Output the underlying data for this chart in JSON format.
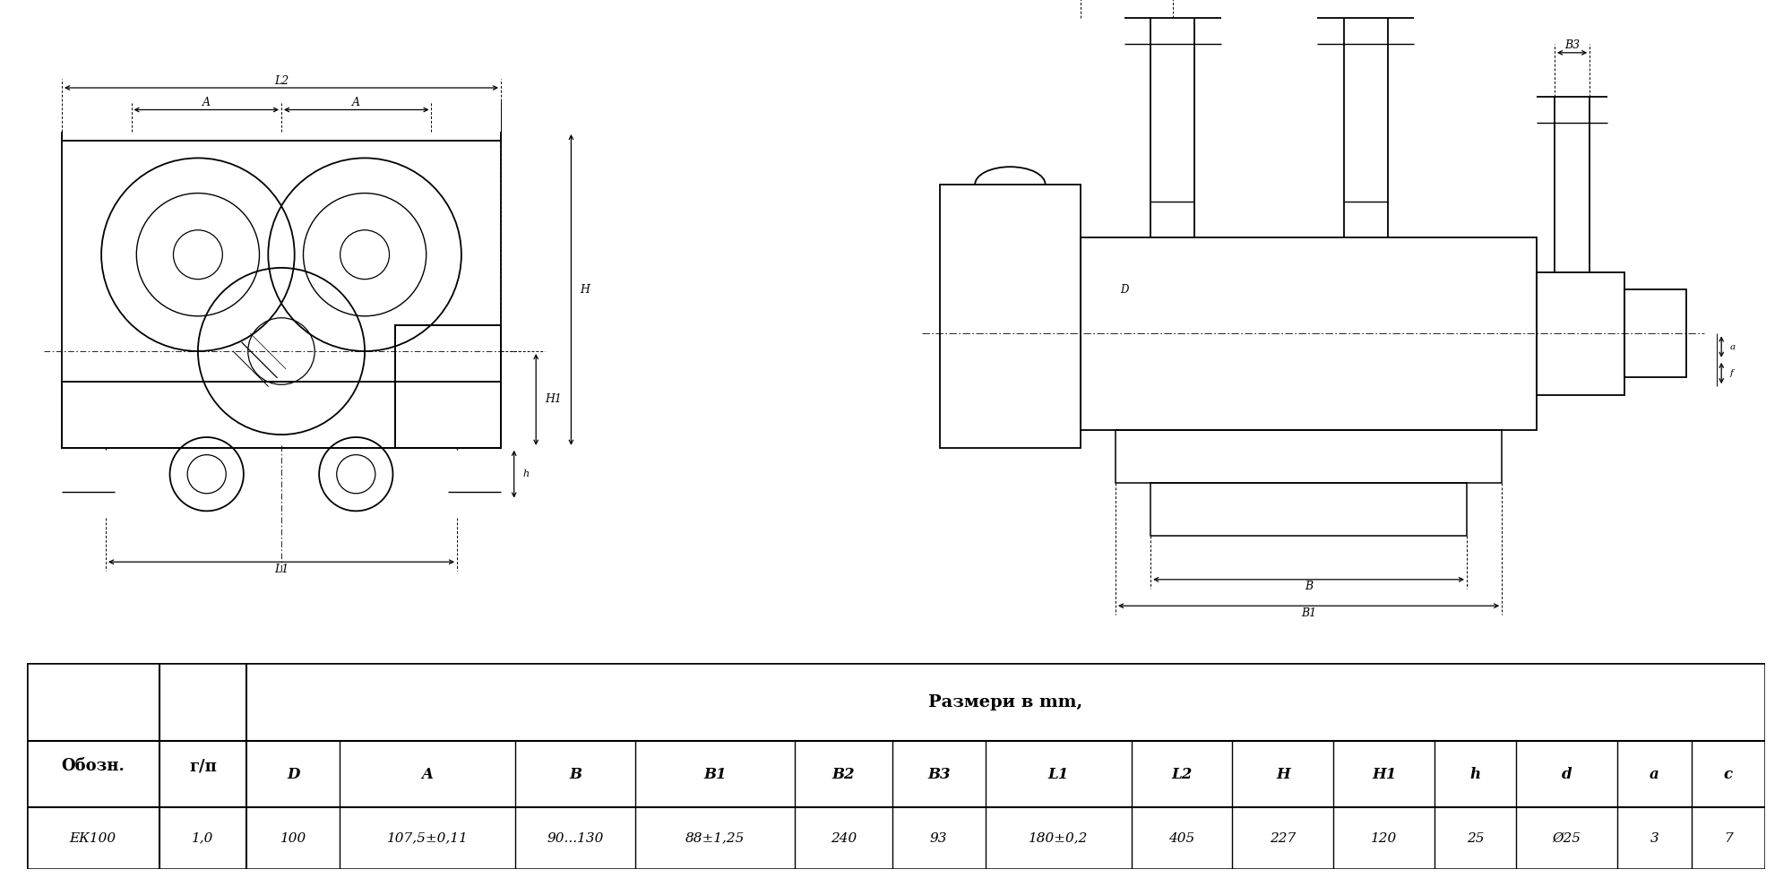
{
  "bg_color": "#ffffff",
  "line_color": "#000000",
  "table_title": "Размери в mm,",
  "col_headers": [
    "Обозн.",
    "г/п",
    "D",
    "A",
    "B",
    "B1",
    "B2",
    "B3",
    "L1",
    "L2",
    "H",
    "H1",
    "h",
    "d",
    "a",
    "c"
  ],
  "row_data": [
    "ЕК100",
    "1,0",
    "100",
    "107,5±0,11",
    "90...130",
    "88±1,25",
    "240",
    "93",
    "180±0,2",
    "405",
    "227",
    "120",
    "25",
    "Ø25",
    "3",
    "7"
  ],
  "title_fontsize": 13,
  "header_fontsize": 12,
  "data_fontsize": 12
}
